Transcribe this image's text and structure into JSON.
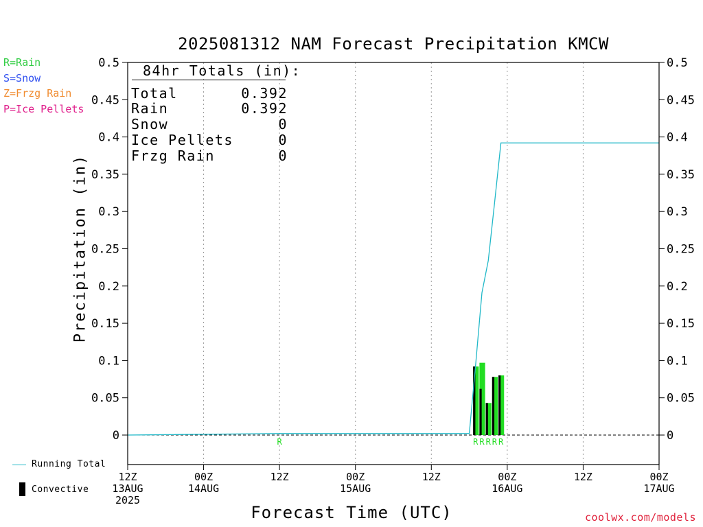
{
  "title": "2025081312 NAM Forecast Precipitation KMCW",
  "ylabel": "Precipitation (in)",
  "xlabel": "Forecast Time (UTC)",
  "credit": "coolwx.com/models",
  "type_legend": [
    {
      "text": "R=Rain",
      "color": "#2ecc40"
    },
    {
      "text": "S=Snow",
      "color": "#3050f0"
    },
    {
      "text": "Z=Frzg Rain",
      "color": "#f08c30"
    },
    {
      "text": "P=Ice Pellets",
      "color": "#e0208c"
    }
  ],
  "totals": {
    "header": "84hr Totals (in):",
    "rows": [
      {
        "label": "Total",
        "value": "0.392"
      },
      {
        "label": "Rain",
        "value": "0.392"
      },
      {
        "label": "Snow",
        "value": "0"
      },
      {
        "label": "Ice Pellets",
        "value": "0"
      },
      {
        "label": "Frzg Rain",
        "value": "0"
      }
    ]
  },
  "bottom_legend": {
    "running_total": "Running Total",
    "convective": "Convective"
  },
  "colors": {
    "rain": "#22dd22",
    "running_total": "#20b8c8",
    "convective": "#000000",
    "credit": "#e0203a"
  },
  "chart_data": {
    "type": "bar",
    "title": "2025081312 NAM Forecast Precipitation KMCW",
    "xlabel": "Forecast Time (UTC)",
    "ylabel": "Precipitation (in)",
    "xlim_hours": [
      0,
      84
    ],
    "ylim": [
      -0.04,
      0.5
    ],
    "y_ticks": [
      0,
      0.05,
      0.1,
      0.15,
      0.2,
      0.25,
      0.3,
      0.35,
      0.4,
      0.45,
      0.5
    ],
    "y_tick_labels": [
      "0",
      "0.05",
      "0.1",
      "0.15",
      "0.2",
      "0.25",
      "0.3",
      "0.35",
      "0.4",
      "0.45",
      "0.5"
    ],
    "x_ticks": [
      {
        "hour": 0,
        "lines": [
          "12Z",
          "13AUG",
          "2025"
        ]
      },
      {
        "hour": 12,
        "lines": [
          "00Z",
          "14AUG"
        ]
      },
      {
        "hour": 24,
        "lines": [
          "12Z"
        ]
      },
      {
        "hour": 36,
        "lines": [
          "00Z",
          "15AUG"
        ]
      },
      {
        "hour": 48,
        "lines": [
          "12Z"
        ]
      },
      {
        "hour": 60,
        "lines": [
          "00Z",
          "16AUG"
        ]
      },
      {
        "hour": 72,
        "lines": [
          "12Z"
        ]
      },
      {
        "hour": 84,
        "lines": [
          "00Z",
          "17AUG"
        ]
      }
    ],
    "grid": "vertical dotted",
    "bars": [
      {
        "hour": 55,
        "total": 0.092,
        "convective": 0.092
      },
      {
        "hour": 56,
        "total": 0.097,
        "convective": 0.062
      },
      {
        "hour": 57,
        "total": 0.043,
        "convective": 0.043
      },
      {
        "hour": 58,
        "total": 0.078,
        "convective": 0.078
      },
      {
        "hour": 59,
        "total": 0.08,
        "convective": 0.08
      }
    ],
    "running_total": {
      "hours": [
        0,
        24,
        54,
        55,
        56,
        57,
        58,
        59,
        84
      ],
      "values": [
        0,
        0.002,
        0.002,
        0.094,
        0.191,
        0.234,
        0.312,
        0.392,
        0.392
      ]
    },
    "precip_type_labels": [
      {
        "hour": 24,
        "label": "R"
      },
      {
        "hour": 55,
        "label": "R"
      },
      {
        "hour": 56,
        "label": "R"
      },
      {
        "hour": 57,
        "label": "R"
      },
      {
        "hour": 58,
        "label": "R"
      },
      {
        "hour": 59,
        "label": "R"
      }
    ]
  }
}
